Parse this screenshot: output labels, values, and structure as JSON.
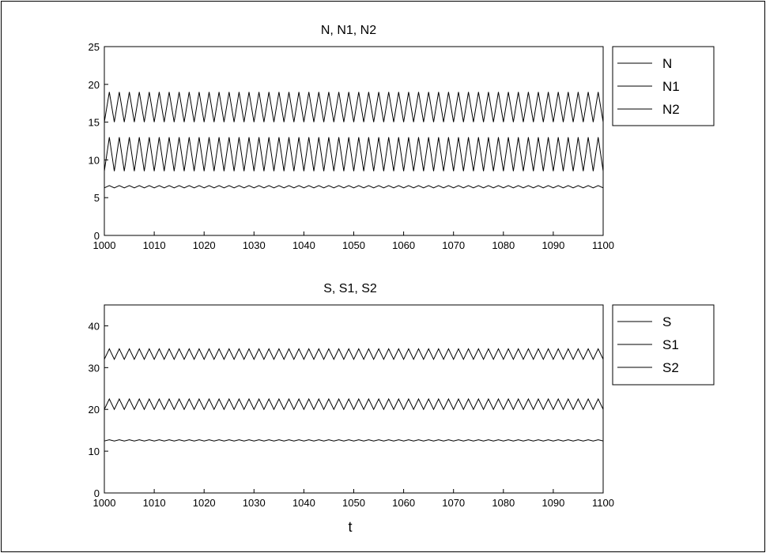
{
  "background": "#ffffff",
  "line_color": "#000000",
  "chart_data": [
    {
      "type": "line",
      "title": "N, N1, N2",
      "xlabel": "",
      "ylabel": "",
      "xlim": [
        1000,
        1100
      ],
      "ylim": [
        0,
        25
      ],
      "xticks": [
        "1000",
        "1010",
        "1020",
        "1030",
        "1040",
        "1050",
        "1060",
        "1070",
        "1080",
        "1090",
        "1100"
      ],
      "yticks": [
        "0",
        "5",
        "10",
        "15",
        "20",
        "25"
      ],
      "legend_placement": "outside-right",
      "grid": false,
      "series": [
        {
          "name": "N",
          "shape": "flat",
          "levels": [
            6.3,
            6.6
          ],
          "note": ""
        },
        {
          "name": "N1",
          "shape": "oscillating",
          "levels": [
            15.0,
            19.0
          ]
        },
        {
          "name": "N2",
          "shape": "oscillating",
          "levels": [
            8.5,
            13.0
          ]
        }
      ]
    },
    {
      "type": "line",
      "title": "S, S1, S2",
      "xlabel": "t",
      "ylabel": "",
      "xlim": [
        1000,
        1100
      ],
      "ylim": [
        0,
        45
      ],
      "xticks": [
        "1000",
        "1010",
        "1020",
        "1030",
        "1040",
        "1050",
        "1060",
        "1070",
        "1080",
        "1090",
        "1100"
      ],
      "yticks": [
        "0",
        "10",
        "20",
        "30",
        "40"
      ],
      "legend_placement": "outside-right",
      "grid": false,
      "series": [
        {
          "name": "S",
          "shape": "oscillating",
          "levels": [
            32.0,
            34.5
          ]
        },
        {
          "name": "S1",
          "shape": "oscillating",
          "levels": [
            20.0,
            22.5
          ]
        },
        {
          "name": "S2",
          "shape": "flat",
          "levels": [
            12.3,
            12.9
          ]
        }
      ]
    }
  ]
}
